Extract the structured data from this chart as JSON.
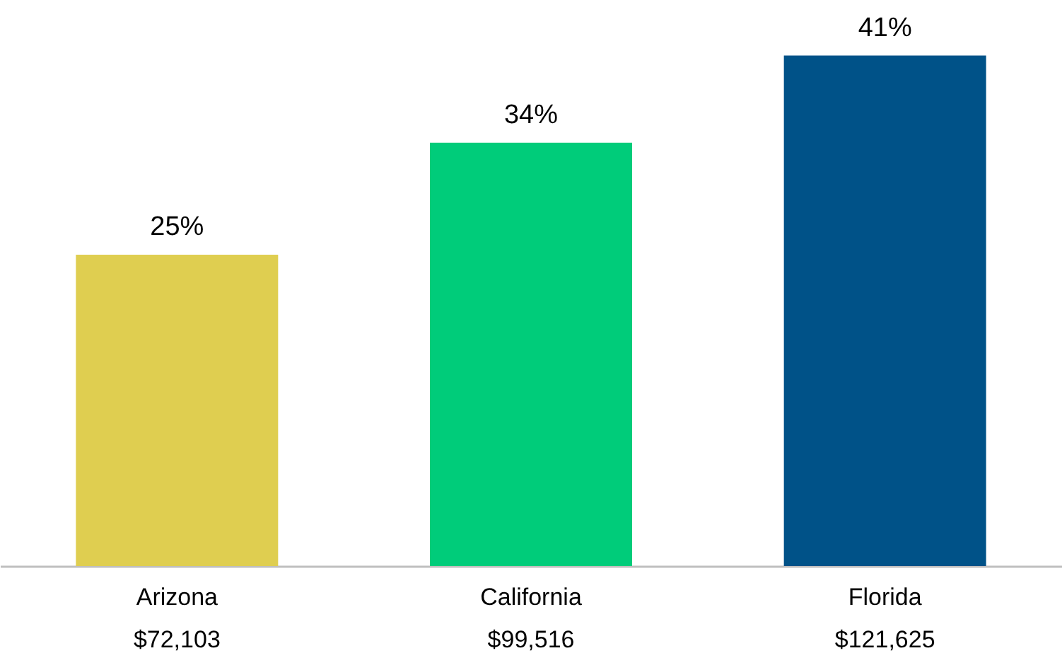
{
  "chart_data": {
    "type": "bar",
    "categories": [
      "Arizona\n$72,103",
      "California\n$99,516",
      "Florida\n$121,625"
    ],
    "values": [
      25,
      34,
      41
    ],
    "colors": [
      "#dfce50",
      "#00cc7a",
      "#005288"
    ],
    "value_labels": [
      "25%",
      "34%",
      "41%"
    ],
    "grid": false,
    "legend": false
  }
}
